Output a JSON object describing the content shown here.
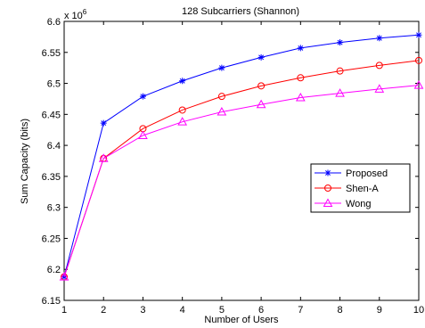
{
  "chart_data": {
    "type": "line",
    "title": "128 Subcarriers  (Shannon)",
    "xlabel": "Number of Users",
    "ylabel": "Sum Capacity (bits)",
    "y_multiplier_label": "x 10",
    "y_multiplier_exponent": "6",
    "x": [
      1,
      2,
      3,
      4,
      5,
      6,
      7,
      8,
      9,
      10
    ],
    "xlim": [
      1,
      10
    ],
    "ylim": [
      6.15,
      6.6
    ],
    "x_ticks": [
      "1",
      "2",
      "3",
      "4",
      "5",
      "6",
      "7",
      "8",
      "9",
      "10"
    ],
    "y_ticks": [
      "6.15",
      "6.2",
      "6.25",
      "6.3",
      "6.35",
      "6.4",
      "6.45",
      "6.5",
      "6.55",
      "6.6"
    ],
    "grid": false,
    "legend_position": "right",
    "series": [
      {
        "name": "Proposed",
        "color": "#0000ff",
        "marker": "star",
        "values": [
          6.188,
          6.436,
          6.479,
          6.504,
          6.525,
          6.542,
          6.557,
          6.566,
          6.573,
          6.578
        ]
      },
      {
        "name": "Shen-A",
        "color": "#ff0000",
        "marker": "circle",
        "values": [
          6.188,
          6.379,
          6.427,
          6.457,
          6.479,
          6.496,
          6.509,
          6.52,
          6.529,
          6.537
        ]
      },
      {
        "name": "Wong",
        "color": "#ff00ff",
        "marker": "triangle",
        "values": [
          6.188,
          6.379,
          6.416,
          6.438,
          6.454,
          6.466,
          6.477,
          6.484,
          6.491,
          6.497
        ]
      }
    ]
  }
}
